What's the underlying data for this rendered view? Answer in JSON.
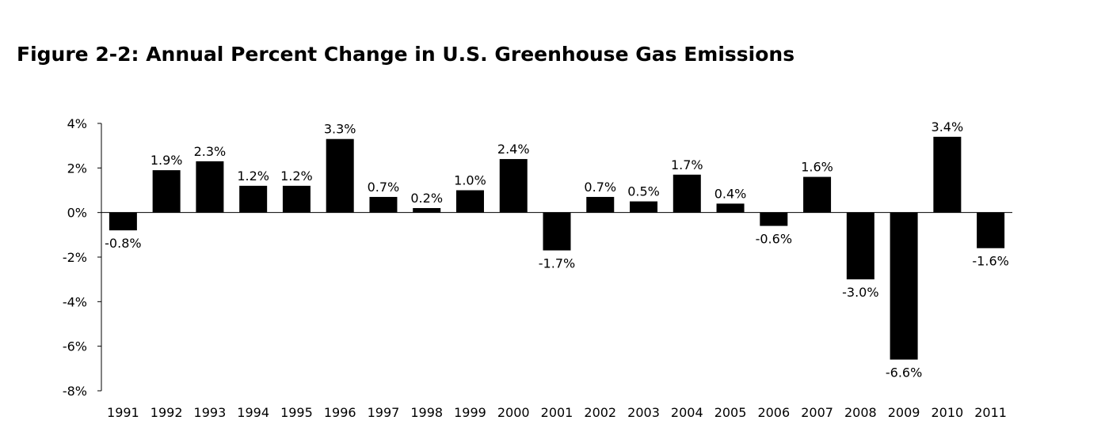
{
  "title": "Figure 2-2:  Annual Percent Change in U.S. Greenhouse Gas Emissions",
  "chart_data": {
    "type": "bar",
    "title": "Figure 2-2:  Annual Percent Change in U.S. Greenhouse Gas Emissions",
    "xlabel": "",
    "ylabel": "",
    "categories": [
      "1991",
      "1992",
      "1993",
      "1994",
      "1995",
      "1996",
      "1997",
      "1998",
      "1999",
      "2000",
      "2001",
      "2002",
      "2003",
      "2004",
      "2005",
      "2006",
      "2007",
      "2008",
      "2009",
      "2010",
      "2011"
    ],
    "values": [
      -0.8,
      1.9,
      2.3,
      1.2,
      1.2,
      3.3,
      0.7,
      0.2,
      1.0,
      2.4,
      -1.7,
      0.7,
      0.5,
      1.7,
      0.4,
      -0.6,
      1.6,
      -3.0,
      -6.6,
      3.4,
      -1.6
    ],
    "data_labels": [
      "-0.8%",
      "1.9%",
      "2.3%",
      "1.2%",
      "1.2%",
      "3.3%",
      "0.7%",
      "0.2%",
      "1.0%",
      "2.4%",
      "-1.7%",
      "0.7%",
      "0.5%",
      "1.7%",
      "0.4%",
      "-0.6%",
      "1.6%",
      "-3.0%",
      "-6.6%",
      "3.4%",
      "-1.6%"
    ],
    "ylim": [
      -8,
      4
    ],
    "yticks": [
      4,
      2,
      0,
      -2,
      -4,
      -6,
      -8
    ],
    "ytick_labels": [
      "4%",
      "2%",
      "0%",
      "-2%",
      "-4%",
      "-6%",
      "-8%"
    ],
    "grid": false,
    "legend": "none",
    "bar_color": "#000000"
  }
}
